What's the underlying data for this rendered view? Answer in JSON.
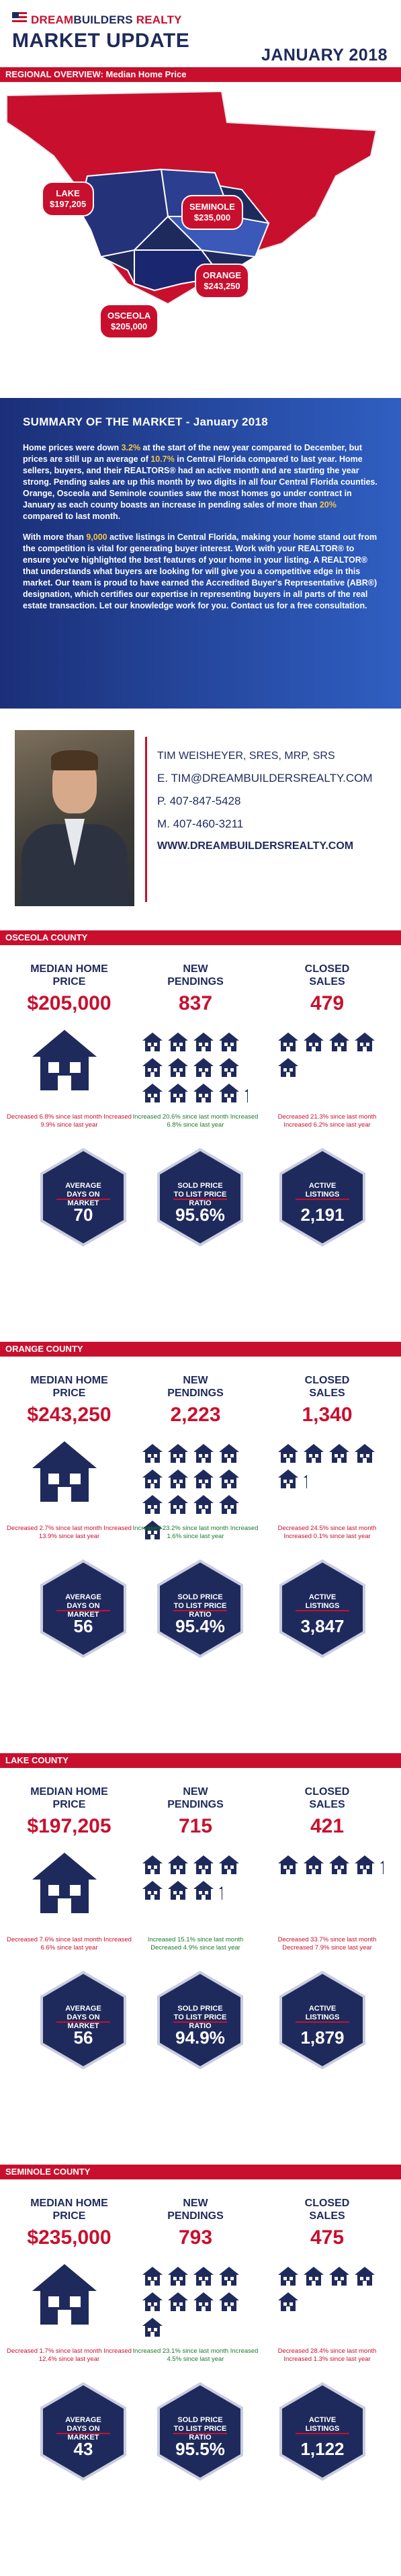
{
  "brand": {
    "name_red": "DREAM",
    "name_blue": "BUILDERS",
    "name_tail": " REALTY"
  },
  "header": {
    "title": "MARKET UPDATE",
    "month": "JANUARY 2018"
  },
  "regional_bar": "REGIONAL OVERVIEW: Median Home Price",
  "map_labels": [
    {
      "county": "LAKE",
      "price": "$197,205"
    },
    {
      "county": "SEMINOLE",
      "price": "$235,000"
    },
    {
      "county": "ORANGE",
      "price": "$243,250"
    },
    {
      "county": "OSCEOLA",
      "price": "$205,000"
    }
  ],
  "summary": {
    "title": "SUMMARY OF THE MARKET - January 2018",
    "p1_a": "Home prices were down ",
    "p1_h1": "3.2%",
    "p1_b": " at the start of the new year compared to December, but prices are still up an average of ",
    "p1_h2": "10.7%",
    "p1_c": " in Central Florida compared to last year. Home sellers, buyers, and their REALTORS® had an active month and are starting the year strong. Pending sales are up this month by two digits in all four Central Florida counties. Orange, Osceola and Seminole counties saw the most homes go under contract in January as each county boasts an increase in pending sales of more than ",
    "p1_h3": "20%",
    "p1_d": " compared to last month.",
    "p2_a": "With more than ",
    "p2_h1": "9,000",
    "p2_b": " active listings in Central Florida, making your home stand out from the competition is vital for generating buyer interest. Work with your REALTOR® to ensure you've highlighted the best features of your home in your listing. A REALTOR® that understands what buyers are looking for will give you a competitive edge in this market. Our team is proud to have earned the Accredited Buyer's Representative (ABR®) designation, which certifies our expertise in representing buyers in all parts of the real estate transaction. Let our knowledge work for you. Contact us for a free consultation."
  },
  "agent": {
    "name": "TIM WEISHEYER, SRES, MRP, SRS",
    "email": "E. TIM@DREAMBUILDERSREALTY.COM",
    "phone": "P. 407-847-5428",
    "mobile": "M. 407-460-3211",
    "website": "WWW.DREAMBUILDERSREALTY.COM"
  },
  "labels": {
    "median": "MEDIAN HOME PRICE",
    "pendings": "NEW PENDINGS",
    "closed": "CLOSED SALES",
    "dom": "AVERAGE DAYS ON MARKET",
    "ratio": "SOLD PRICE TO LIST PRICE RATIO",
    "active": "ACTIVE LISTINGS"
  },
  "counties": [
    {
      "bar": "OSCEOLA COUNTY",
      "median": "$205,000",
      "pendings": "837",
      "closed": "479",
      "median_change": "Decreased 6.8% since last month Increased 9.9% since last year",
      "pendings_change": "Increased 20.6% since last month Increased 6.8% since last year",
      "closed_change": "Decreased 21.3% since last month Increased 6.2% since last year",
      "dom": "70",
      "ratio": "95.6%",
      "active": "2,191",
      "pend_icons": 12.2,
      "closed_icons": 5
    },
    {
      "bar": "ORANGE COUNTY",
      "median": "$243,250",
      "pendings": "2,223",
      "closed": "1,340",
      "median_change": "Decreased 2.7% since last month Increased 13.9% since last year",
      "pendings_change": "Increased 23.2% since last month Increased 1.6% since last year",
      "closed_change": "Decreased 24.5% since last month Increased 0.1% since last year",
      "dom": "56",
      "ratio": "95.4%",
      "active": "3,847",
      "pend_icons": 13,
      "closed_icons": 5.2
    },
    {
      "bar": "LAKE COUNTY",
      "median": "$197,205",
      "pendings": "715",
      "closed": "421",
      "median_change": "Decreased 7.6% since last month Increased 6.6% since last year",
      "pendings_change": "Increased 15.1% since last month Decreased 4.9% since last year",
      "closed_change": "Decreased 33.7% since last month Decreased 7.9% since last year",
      "dom": "56",
      "ratio": "94.9%",
      "active": "1,879",
      "pend_icons": 7.2,
      "closed_icons": 4.2
    },
    {
      "bar": "SEMINOLE COUNTY",
      "median": "$235,000",
      "pendings": "793",
      "closed": "475",
      "median_change": "Decreased 1.7% since last month Increased 12.4% since last year",
      "pendings_change": "Increased 23.1% since last month Increased 4.5% since last year",
      "closed_change": "Decreased 28.4% since last month Increased 1.3% since last year",
      "dom": "43",
      "ratio": "95.5%",
      "active": "1,122",
      "pend_icons": 9,
      "closed_icons": 5
    }
  ],
  "colors": {
    "navy": "#1f2a5c",
    "red": "#c8102e",
    "blue": "#2f5fc2"
  }
}
